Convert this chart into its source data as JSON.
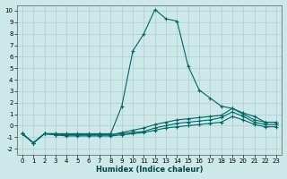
{
  "xlabel": "Humidex (Indice chaleur)",
  "background_color": "#cce8e8",
  "grid_color": "#b0cccc",
  "line_color": "#006666",
  "xlim": [
    -0.5,
    23.5
  ],
  "ylim": [
    -2.5,
    10.5
  ],
  "yticks": [
    -2,
    -1,
    0,
    1,
    2,
    3,
    4,
    5,
    6,
    7,
    8,
    9,
    10
  ],
  "xticks": [
    0,
    1,
    2,
    3,
    4,
    5,
    6,
    7,
    8,
    9,
    10,
    11,
    12,
    13,
    14,
    15,
    16,
    17,
    18,
    19,
    20,
    21,
    22,
    23
  ],
  "lines": [
    {
      "x": [
        0,
        1,
        2,
        3,
        4,
        5,
        6,
        7,
        8,
        9,
        10,
        11,
        12,
        13,
        14,
        15,
        16,
        17,
        18,
        19,
        20,
        21,
        22,
        23
      ],
      "y": [
        -0.7,
        -1.5,
        -0.7,
        -0.7,
        -0.7,
        -0.7,
        -0.7,
        -0.7,
        -0.7,
        1.7,
        6.5,
        8.0,
        10.1,
        9.3,
        9.1,
        5.2,
        3.1,
        2.4,
        1.7,
        1.5,
        1.1,
        0.8,
        0.3,
        0.3
      ]
    },
    {
      "x": [
        0,
        1,
        2,
        3,
        4,
        5,
        6,
        7,
        8,
        9,
        10,
        11,
        12,
        13,
        14,
        15,
        16,
        17,
        18,
        19,
        20,
        21,
        22,
        23
      ],
      "y": [
        -0.7,
        -1.5,
        -0.7,
        -0.7,
        -0.8,
        -0.8,
        -0.8,
        -0.8,
        -0.8,
        -0.6,
        -0.4,
        -0.2,
        0.1,
        0.3,
        0.5,
        0.6,
        0.7,
        0.8,
        0.9,
        1.5,
        1.0,
        0.5,
        0.3,
        0.3
      ]
    },
    {
      "x": [
        0,
        1,
        2,
        3,
        4,
        5,
        6,
        7,
        8,
        9,
        10,
        11,
        12,
        13,
        14,
        15,
        16,
        17,
        18,
        19,
        20,
        21,
        22,
        23
      ],
      "y": [
        -0.7,
        -1.5,
        -0.7,
        -0.8,
        -0.8,
        -0.8,
        -0.8,
        -0.8,
        -0.8,
        -0.7,
        -0.6,
        -0.5,
        -0.2,
        0.0,
        0.2,
        0.3,
        0.4,
        0.5,
        0.7,
        1.2,
        0.8,
        0.3,
        0.1,
        0.1
      ]
    },
    {
      "x": [
        0,
        1,
        2,
        3,
        4,
        5,
        6,
        7,
        8,
        9,
        10,
        11,
        12,
        13,
        14,
        15,
        16,
        17,
        18,
        19,
        20,
        21,
        22,
        23
      ],
      "y": [
        -0.7,
        -1.5,
        -0.7,
        -0.8,
        -0.9,
        -0.9,
        -0.9,
        -0.9,
        -0.9,
        -0.8,
        -0.7,
        -0.6,
        -0.4,
        -0.2,
        -0.1,
        0.0,
        0.1,
        0.2,
        0.3,
        0.8,
        0.5,
        0.1,
        -0.1,
        -0.1
      ]
    }
  ]
}
